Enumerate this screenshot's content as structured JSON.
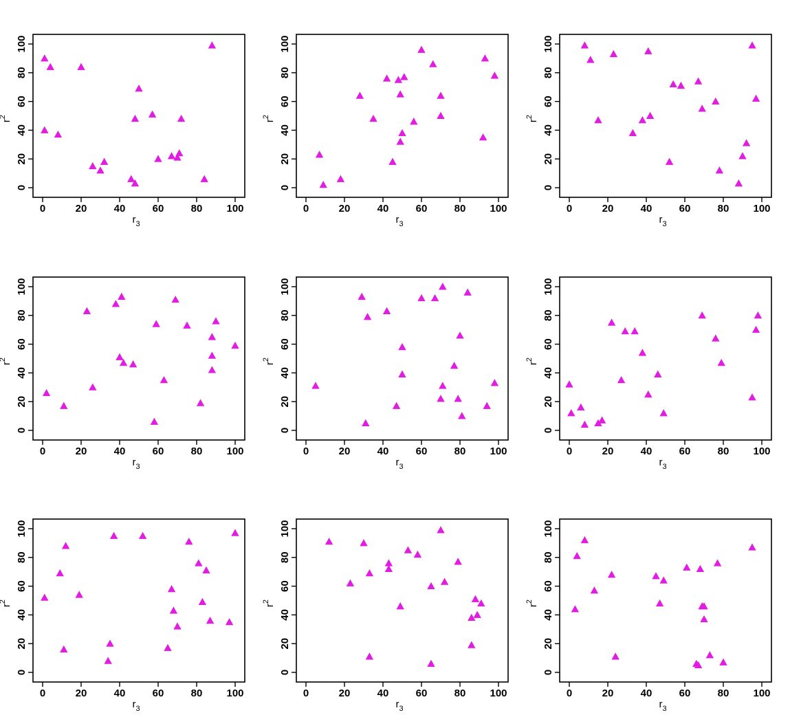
{
  "figure": {
    "layout": {
      "rows": 3,
      "cols": 3
    },
    "marker": "filled-triangle",
    "color": "#e11de1"
  },
  "chart_data": [
    {
      "type": "scatter",
      "xlabel_main": "r",
      "xlabel_sub": "3",
      "ylabel_main": "r",
      "ylabel_sup": "2",
      "xlim": [
        0,
        100
      ],
      "ylim": [
        0,
        100
      ],
      "xticks": [
        "0",
        "20",
        "40",
        "60",
        "80",
        "100"
      ],
      "yticks": [
        "0",
        "20",
        "40",
        "60",
        "80",
        "100"
      ],
      "grid": false,
      "points": [
        [
          1,
          90
        ],
        [
          4,
          84
        ],
        [
          1,
          40
        ],
        [
          8,
          37
        ],
        [
          20,
          84
        ],
        [
          26,
          15
        ],
        [
          30,
          12
        ],
        [
          32,
          18
        ],
        [
          46,
          6
        ],
        [
          48,
          3
        ],
        [
          48,
          48
        ],
        [
          50,
          69
        ],
        [
          57,
          51
        ],
        [
          60,
          20
        ],
        [
          67,
          22
        ],
        [
          70,
          21
        ],
        [
          71,
          24
        ],
        [
          72,
          48
        ],
        [
          84,
          6
        ],
        [
          88,
          99
        ]
      ]
    },
    {
      "type": "scatter",
      "xlabel_main": "r",
      "xlabel_sub": "3",
      "ylabel_main": "r",
      "ylabel_sup": "2",
      "xlim": [
        0,
        100
      ],
      "ylim": [
        0,
        100
      ],
      "xticks": [
        "0",
        "20",
        "40",
        "60",
        "80",
        "100"
      ],
      "yticks": [
        "0",
        "20",
        "40",
        "60",
        "80",
        "100"
      ],
      "grid": false,
      "points": [
        [
          7,
          23
        ],
        [
          9,
          2
        ],
        [
          18,
          6
        ],
        [
          28,
          64
        ],
        [
          35,
          48
        ],
        [
          42,
          76
        ],
        [
          45,
          18
        ],
        [
          48,
          75
        ],
        [
          49,
          65
        ],
        [
          50,
          38
        ],
        [
          49,
          32
        ],
        [
          51,
          77
        ],
        [
          56,
          46
        ],
        [
          60,
          96
        ],
        [
          66,
          86
        ],
        [
          70,
          64
        ],
        [
          70,
          50
        ],
        [
          92,
          35
        ],
        [
          93,
          90
        ],
        [
          98,
          78
        ]
      ]
    },
    {
      "type": "scatter",
      "xlabel_main": "r",
      "xlabel_sub": "3",
      "ylabel_main": "r",
      "ylabel_sup": "2",
      "xlim": [
        0,
        100
      ],
      "ylim": [
        0,
        100
      ],
      "xticks": [
        "0",
        "20",
        "40",
        "60",
        "80",
        "100"
      ],
      "yticks": [
        "0",
        "20",
        "40",
        "60",
        "80",
        "100"
      ],
      "grid": false,
      "points": [
        [
          8,
          99
        ],
        [
          11,
          89
        ],
        [
          15,
          47
        ],
        [
          23,
          93
        ],
        [
          33,
          38
        ],
        [
          38,
          47
        ],
        [
          41,
          95
        ],
        [
          42,
          50
        ],
        [
          52,
          18
        ],
        [
          54,
          72
        ],
        [
          58,
          71
        ],
        [
          67,
          74
        ],
        [
          69,
          55
        ],
        [
          76,
          60
        ],
        [
          78,
          12
        ],
        [
          88,
          3
        ],
        [
          90,
          22
        ],
        [
          92,
          31
        ],
        [
          95,
          99
        ],
        [
          97,
          62
        ]
      ]
    },
    {
      "type": "scatter",
      "xlabel_main": "r",
      "xlabel_sub": "3",
      "ylabel_main": "r",
      "ylabel_sup": "2",
      "xlim": [
        0,
        100
      ],
      "ylim": [
        0,
        100
      ],
      "xticks": [
        "0",
        "20",
        "40",
        "60",
        "80",
        "100"
      ],
      "yticks": [
        "0",
        "20",
        "40",
        "60",
        "80",
        "100"
      ],
      "grid": false,
      "points": [
        [
          2,
          26
        ],
        [
          11,
          17
        ],
        [
          23,
          83
        ],
        [
          26,
          30
        ],
        [
          38,
          88
        ],
        [
          40,
          51
        ],
        [
          41,
          93
        ],
        [
          42,
          47
        ],
        [
          47,
          46
        ],
        [
          58,
          6
        ],
        [
          59,
          74
        ],
        [
          63,
          35
        ],
        [
          69,
          91
        ],
        [
          75,
          73
        ],
        [
          82,
          19
        ],
        [
          88,
          65
        ],
        [
          88,
          52
        ],
        [
          88,
          42
        ],
        [
          90,
          76
        ],
        [
          100,
          59
        ]
      ]
    },
    {
      "type": "scatter",
      "xlabel_main": "r",
      "xlabel_sub": "3",
      "ylabel_main": "r",
      "ylabel_sup": "2",
      "xlim": [
        0,
        100
      ],
      "ylim": [
        0,
        100
      ],
      "xticks": [
        "0",
        "20",
        "40",
        "60",
        "80",
        "100"
      ],
      "yticks": [
        "0",
        "20",
        "40",
        "60",
        "80",
        "100"
      ],
      "grid": false,
      "points": [
        [
          5,
          31
        ],
        [
          29,
          93
        ],
        [
          31,
          5
        ],
        [
          32,
          79
        ],
        [
          42,
          83
        ],
        [
          47,
          17
        ],
        [
          50,
          58
        ],
        [
          50,
          39
        ],
        [
          60,
          92
        ],
        [
          67,
          92
        ],
        [
          70,
          22
        ],
        [
          71,
          100
        ],
        [
          71,
          31
        ],
        [
          77,
          45
        ],
        [
          79,
          22
        ],
        [
          80,
          66
        ],
        [
          81,
          10
        ],
        [
          84,
          96
        ],
        [
          94,
          17
        ],
        [
          98,
          33
        ]
      ]
    },
    {
      "type": "scatter",
      "xlabel_main": "r",
      "xlabel_sub": "3",
      "ylabel_main": "r",
      "ylabel_sup": "2",
      "xlim": [
        0,
        100
      ],
      "ylim": [
        0,
        100
      ],
      "xticks": [
        "0",
        "20",
        "40",
        "60",
        "80",
        "100"
      ],
      "yticks": [
        "0",
        "20",
        "40",
        "60",
        "80",
        "100"
      ],
      "grid": false,
      "points": [
        [
          0,
          32
        ],
        [
          1,
          12
        ],
        [
          6,
          16
        ],
        [
          8,
          4
        ],
        [
          15,
          5
        ],
        [
          17,
          7
        ],
        [
          22,
          75
        ],
        [
          27,
          35
        ],
        [
          29,
          69
        ],
        [
          34,
          69
        ],
        [
          38,
          54
        ],
        [
          41,
          25
        ],
        [
          46,
          39
        ],
        [
          49,
          12
        ],
        [
          69,
          80
        ],
        [
          76,
          64
        ],
        [
          79,
          47
        ],
        [
          95,
          23
        ],
        [
          97,
          70
        ],
        [
          98,
          80
        ]
      ]
    },
    {
      "type": "scatter",
      "xlabel_main": "r",
      "xlabel_sub": "3",
      "ylabel_main": "r",
      "ylabel_sup": "2",
      "xlim": [
        0,
        100
      ],
      "ylim": [
        0,
        100
      ],
      "xticks": [
        "0",
        "20",
        "40",
        "60",
        "80",
        "100"
      ],
      "yticks": [
        "0",
        "20",
        "40",
        "60",
        "80",
        "100"
      ],
      "grid": false,
      "points": [
        [
          1,
          52
        ],
        [
          9,
          69
        ],
        [
          11,
          16
        ],
        [
          12,
          88
        ],
        [
          19,
          54
        ],
        [
          34,
          8
        ],
        [
          35,
          20
        ],
        [
          37,
          95
        ],
        [
          52,
          95
        ],
        [
          65,
          17
        ],
        [
          67,
          58
        ],
        [
          68,
          43
        ],
        [
          70,
          32
        ],
        [
          76,
          91
        ],
        [
          81,
          76
        ],
        [
          83,
          49
        ],
        [
          85,
          71
        ],
        [
          87,
          36
        ],
        [
          97,
          35
        ],
        [
          100,
          97
        ]
      ]
    },
    {
      "type": "scatter",
      "xlabel_main": "r",
      "xlabel_sub": "3",
      "ylabel_main": "r",
      "ylabel_sup": "2",
      "xlim": [
        0,
        100
      ],
      "ylim": [
        0,
        100
      ],
      "xticks": [
        "0",
        "20",
        "40",
        "60",
        "80",
        "100"
      ],
      "yticks": [
        "0",
        "20",
        "40",
        "60",
        "80",
        "100"
      ],
      "grid": false,
      "points": [
        [
          12,
          91
        ],
        [
          23,
          62
        ],
        [
          30,
          90
        ],
        [
          33,
          69
        ],
        [
          33,
          11
        ],
        [
          43,
          76
        ],
        [
          43,
          72
        ],
        [
          49,
          46
        ],
        [
          53,
          85
        ],
        [
          58,
          82
        ],
        [
          65,
          60
        ],
        [
          65,
          6
        ],
        [
          70,
          99
        ],
        [
          72,
          63
        ],
        [
          79,
          77
        ],
        [
          86,
          38
        ],
        [
          86,
          19
        ],
        [
          88,
          51
        ],
        [
          89,
          40
        ],
        [
          91,
          48
        ]
      ]
    },
    {
      "type": "scatter",
      "xlabel_main": "r",
      "xlabel_sub": "3",
      "ylabel_main": "r",
      "ylabel_sup": "2",
      "xlim": [
        0,
        100
      ],
      "ylim": [
        0,
        100
      ],
      "xticks": [
        "0",
        "20",
        "40",
        "60",
        "80",
        "100"
      ],
      "yticks": [
        "0",
        "20",
        "40",
        "60",
        "80",
        "100"
      ],
      "grid": false,
      "points": [
        [
          3,
          44
        ],
        [
          4,
          81
        ],
        [
          8,
          92
        ],
        [
          13,
          57
        ],
        [
          22,
          68
        ],
        [
          24,
          11
        ],
        [
          45,
          67
        ],
        [
          47,
          48
        ],
        [
          49,
          64
        ],
        [
          61,
          73
        ],
        [
          66,
          6
        ],
        [
          67,
          5
        ],
        [
          68,
          72
        ],
        [
          69,
          46
        ],
        [
          70,
          46
        ],
        [
          70,
          37
        ],
        [
          73,
          12
        ],
        [
          77,
          76
        ],
        [
          80,
          7
        ],
        [
          95,
          87
        ]
      ]
    }
  ]
}
